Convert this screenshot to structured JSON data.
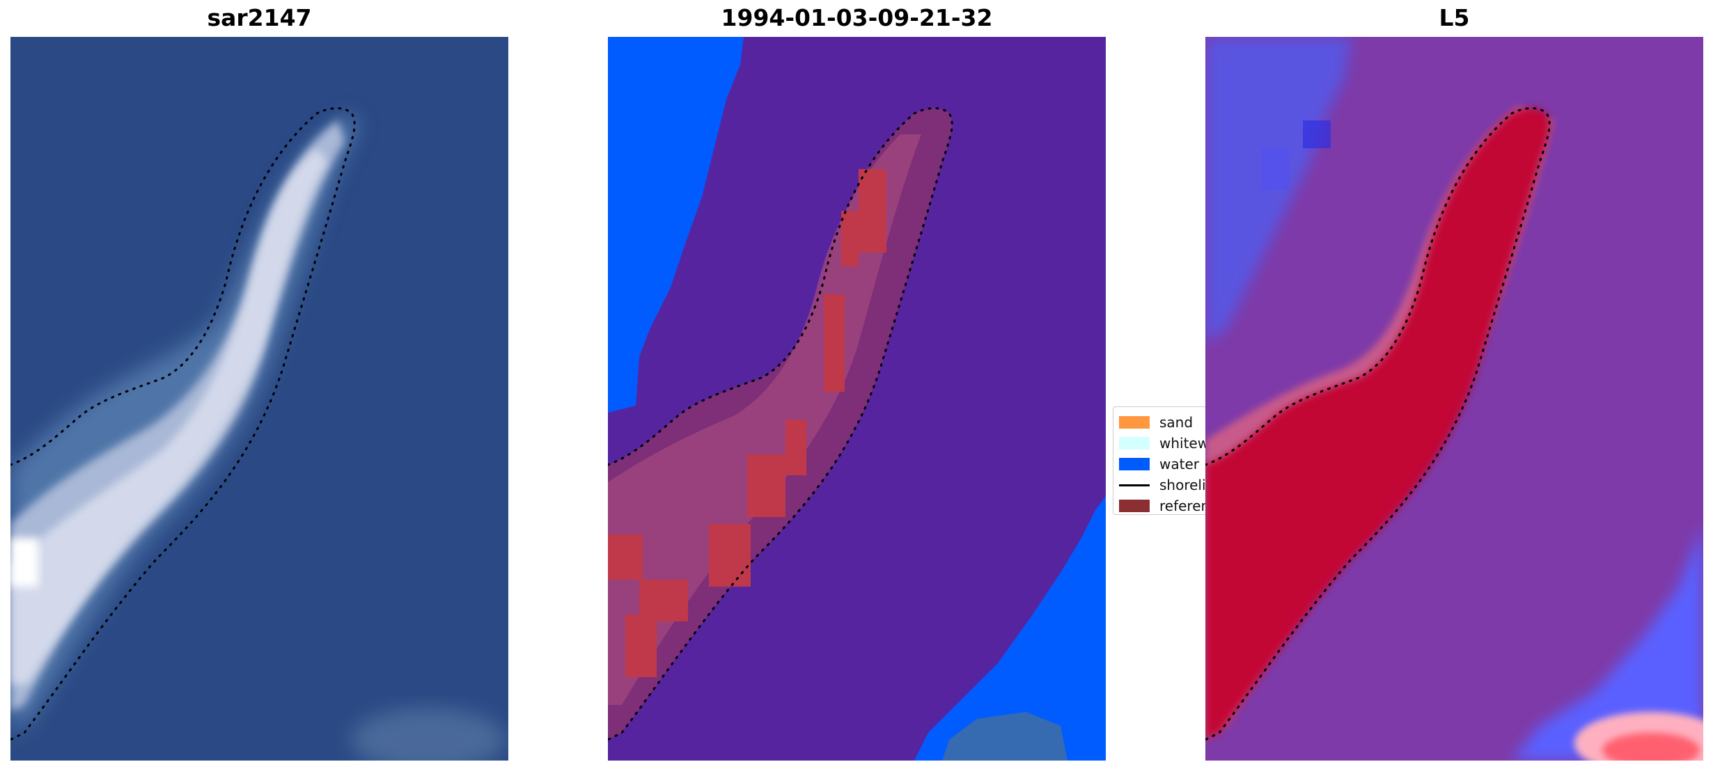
{
  "panels": [
    {
      "title": "sar2147"
    },
    {
      "title": "1994-01-03-09-21-32"
    },
    {
      "title": "L5"
    }
  ],
  "legend": {
    "items": [
      {
        "label": "sand",
        "color": "#ff9640"
      },
      {
        "label": "whitewater",
        "color": "#d3ffff"
      },
      {
        "label": "water",
        "color": "#005cff"
      },
      {
        "label": "shoreline",
        "color": "#000000"
      },
      {
        "label": "reference",
        "color": "#8b2f32"
      }
    ]
  },
  "colors": {
    "sea": "#2b4a85",
    "classified_background": "#5724a0",
    "index_background": "#7e3aa8",
    "index_high": "#c2002f",
    "index_low": "#3c49ff"
  }
}
